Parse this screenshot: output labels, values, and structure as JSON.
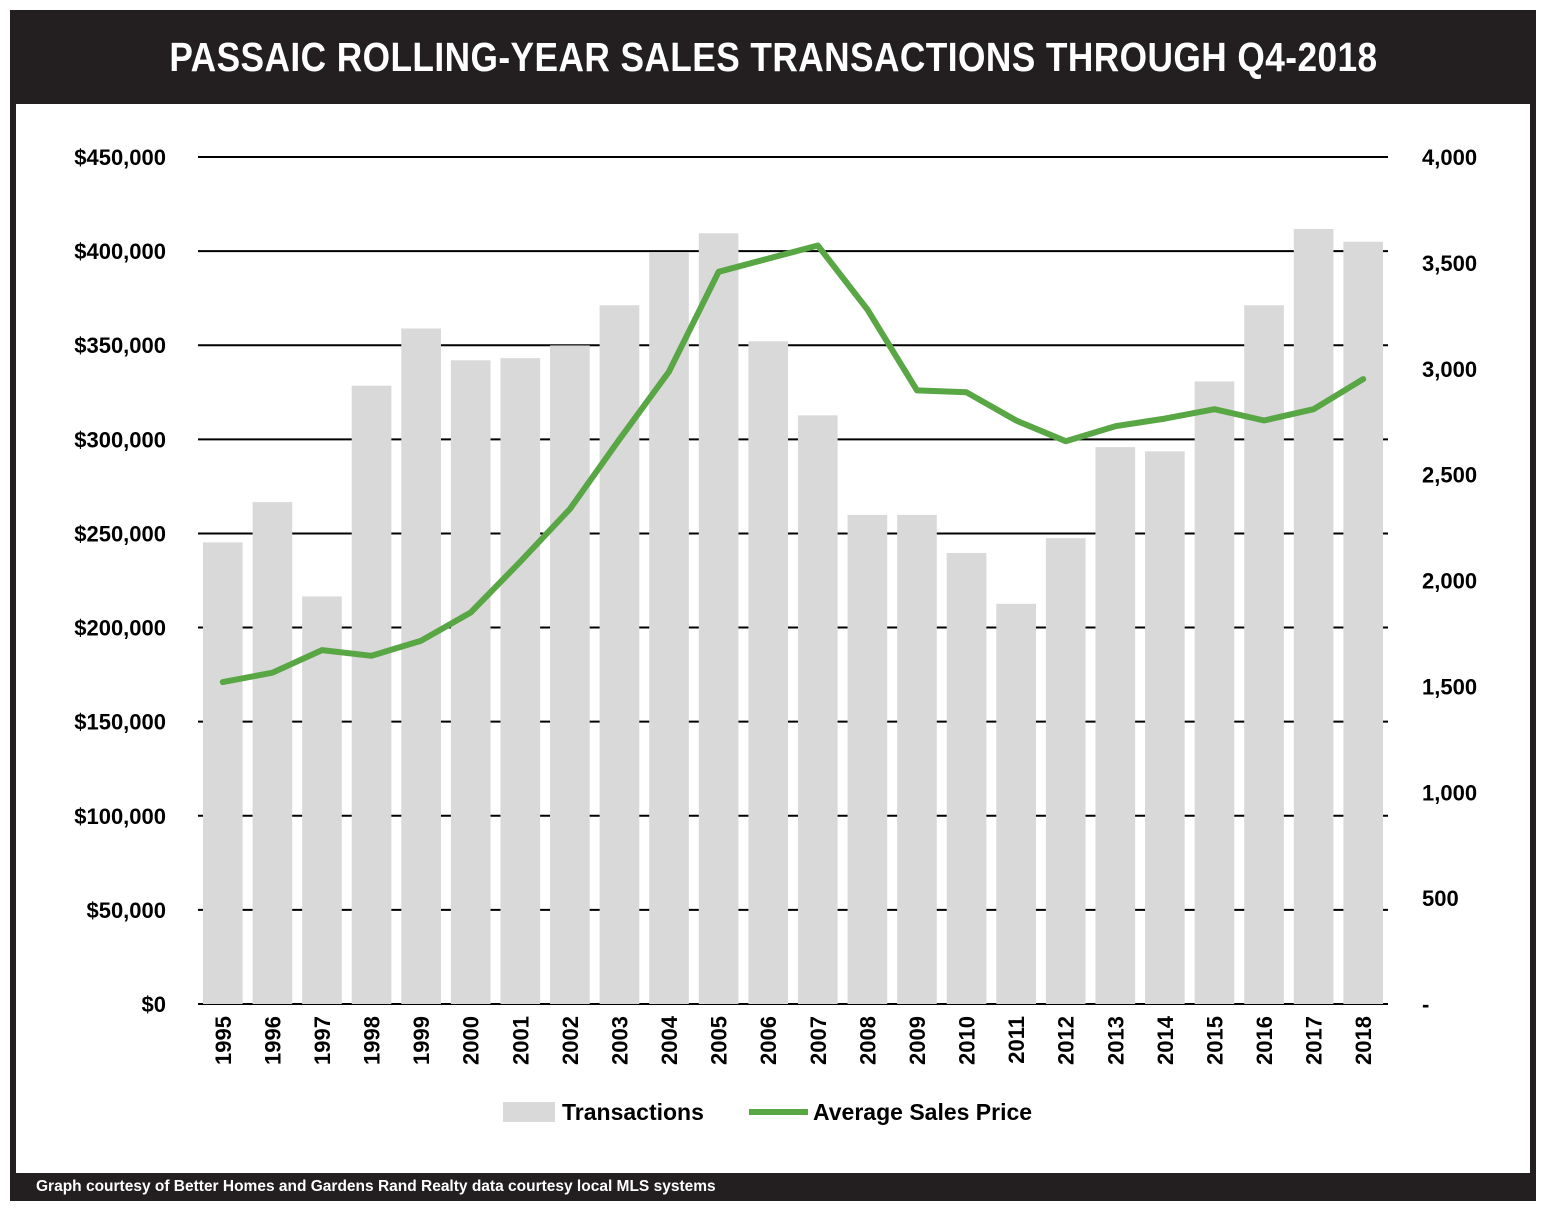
{
  "title": "PASSAIC ROLLING-YEAR SALES TRANSACTIONS THROUGH Q4-2018",
  "footer": "Graph courtesy of Better Homes and Gardens Rand Realty data courtesy local MLS systems",
  "colors": {
    "frame": "#231f20",
    "bar": "#d9d9d9",
    "line": "#59a645",
    "grid": "#000000"
  },
  "chart_data": {
    "type": "bar",
    "categories": [
      "1995",
      "1996",
      "1997",
      "1998",
      "1999",
      "2000",
      "2001",
      "2002",
      "2003",
      "2004",
      "2005",
      "2006",
      "2007",
      "2008",
      "2009",
      "2010",
      "2011",
      "2012",
      "2013",
      "2014",
      "2015",
      "2016",
      "2017",
      "2018"
    ],
    "series": [
      {
        "name": "Transactions",
        "type": "bar",
        "axis": "right",
        "values": [
          2180,
          2370,
          1925,
          2920,
          3190,
          3040,
          3050,
          3110,
          3300,
          3550,
          3640,
          3130,
          2780,
          2310,
          2310,
          2130,
          1890,
          2200,
          2630,
          2610,
          2940,
          3300,
          3660,
          3600
        ]
      },
      {
        "name": "Average Sales Price",
        "type": "line",
        "axis": "left",
        "values": [
          171000,
          176000,
          188000,
          185000,
          193000,
          208000,
          235000,
          263000,
          300000,
          336000,
          389000,
          396000,
          403000,
          369000,
          326000,
          325000,
          310000,
          299000,
          307000,
          311000,
          316000,
          310000,
          316000,
          332000
        ]
      }
    ],
    "y_left": {
      "ylim": [
        0,
        450000
      ],
      "ticks": [
        0,
        50000,
        100000,
        150000,
        200000,
        250000,
        300000,
        350000,
        400000,
        450000
      ],
      "tick_labels": [
        "$0",
        "$50,000",
        "$100,000",
        "$150,000",
        "$200,000",
        "$250,000",
        "$300,000",
        "$350,000",
        "$400,000",
        "$450,000"
      ]
    },
    "y_right": {
      "ylim": [
        0,
        4000
      ],
      "ticks": [
        0,
        500,
        1000,
        1500,
        2000,
        2500,
        3000,
        3500,
        4000
      ],
      "tick_labels": [
        "-",
        "500",
        "1,000",
        "1,500",
        "2,000",
        "2,500",
        "3,000",
        "3,500",
        "4,000"
      ]
    },
    "xlabel": "",
    "ylabel": "",
    "grid": true,
    "legend": "bottom-center"
  }
}
